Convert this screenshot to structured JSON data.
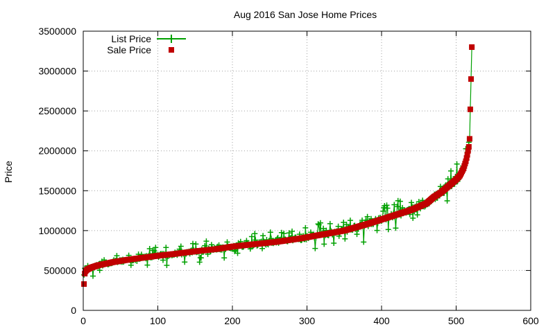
{
  "chart_data": {
    "type": "scatter",
    "title": "Aug 2016 San Jose Home Prices",
    "xlabel": "",
    "ylabel": "Price",
    "xlim": [
      0,
      600
    ],
    "ylim": [
      0,
      3500000
    ],
    "x_ticks": [
      0,
      100,
      200,
      300,
      400,
      500,
      600
    ],
    "y_ticks": [
      0,
      500000,
      1000000,
      1500000,
      2000000,
      2500000,
      3000000,
      3500000
    ],
    "grid": true,
    "legend_position": "top-left",
    "sale_curve_knots": [
      [
        1,
        330000
      ],
      [
        2,
        460000
      ],
      [
        3,
        490000
      ],
      [
        5,
        510000
      ],
      [
        10,
        535000
      ],
      [
        20,
        565000
      ],
      [
        40,
        605000
      ],
      [
        60,
        635000
      ],
      [
        80,
        660000
      ],
      [
        100,
        685000
      ],
      [
        120,
        705000
      ],
      [
        150,
        740000
      ],
      [
        180,
        770000
      ],
      [
        200,
        800000
      ],
      [
        230,
        830000
      ],
      [
        260,
        860000
      ],
      [
        290,
        900000
      ],
      [
        320,
        950000
      ],
      [
        350,
        1000000
      ],
      [
        380,
        1080000
      ],
      [
        400,
        1140000
      ],
      [
        420,
        1200000
      ],
      [
        440,
        1260000
      ],
      [
        460,
        1340000
      ],
      [
        470,
        1420000
      ],
      [
        480,
        1480000
      ],
      [
        490,
        1560000
      ],
      [
        500,
        1640000
      ],
      [
        505,
        1690000
      ],
      [
        510,
        1780000
      ],
      [
        513,
        1870000
      ],
      [
        515,
        1950000
      ],
      [
        516,
        2000000
      ],
      [
        517,
        2050000
      ],
      [
        518,
        2150000
      ],
      [
        519,
        2520000
      ],
      [
        520,
        2900000
      ],
      [
        521,
        3300000
      ]
    ],
    "series": [
      {
        "name": "List Price",
        "style": "linespoints",
        "marker": "plus",
        "color": "#00a000"
      },
      {
        "name": "Sale Price",
        "style": "points",
        "marker": "square",
        "color": "#c00000"
      }
    ]
  }
}
